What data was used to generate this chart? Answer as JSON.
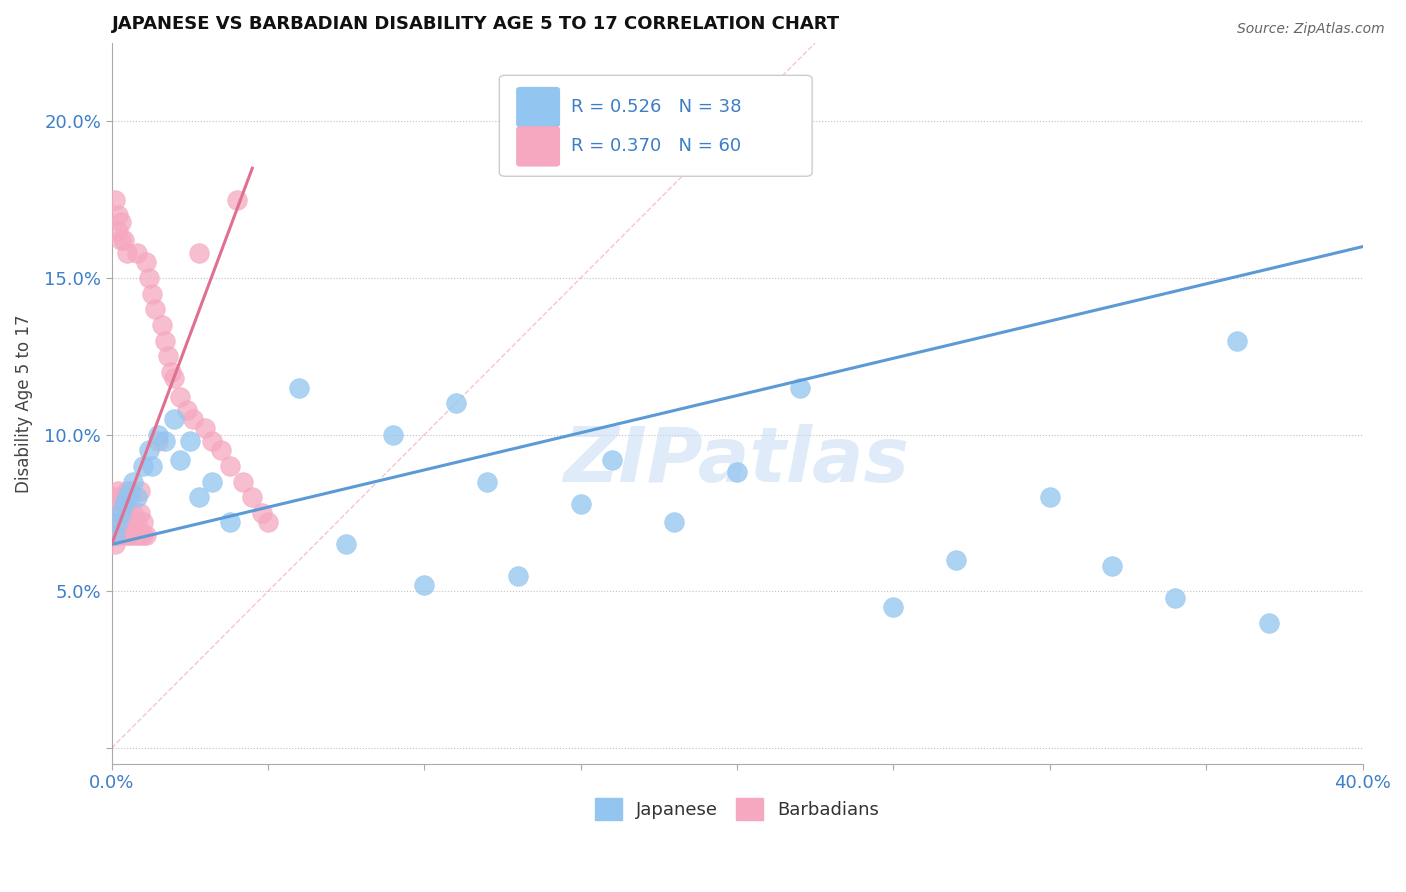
{
  "title": "JAPANESE VS BARBADIAN DISABILITY AGE 5 TO 17 CORRELATION CHART",
  "source": "Source: ZipAtlas.com",
  "ylabel": "Disability Age 5 to 17",
  "xlim": [
    0.0,
    0.4
  ],
  "ylim": [
    -0.005,
    0.225
  ],
  "xtick_positions": [
    0.0,
    0.05,
    0.1,
    0.15,
    0.2,
    0.25,
    0.3,
    0.35,
    0.4
  ],
  "ytick_positions": [
    0.0,
    0.05,
    0.1,
    0.15,
    0.2
  ],
  "blue_r": "R = 0.526",
  "blue_n": "N = 38",
  "pink_r": "R = 0.370",
  "pink_n": "N = 60",
  "blue_color": "#92C5F0",
  "pink_color": "#F5A8C0",
  "blue_line_color": "#5B9BD5",
  "pink_line_color": "#E07090",
  "legend_label_blue": "Japanese",
  "legend_label_pink": "Barbadians",
  "watermark": "ZIPatlas",
  "blue_line_x": [
    0.0,
    0.4
  ],
  "blue_line_y": [
    0.065,
    0.16
  ],
  "pink_line_x": [
    0.0,
    0.045
  ],
  "pink_line_y": [
    0.065,
    0.185
  ],
  "dash_line_x": [
    0.0,
    0.225
  ],
  "dash_line_y": [
    0.0,
    0.225
  ],
  "blue_x": [
    0.001,
    0.002,
    0.003,
    0.004,
    0.005,
    0.006,
    0.007,
    0.008,
    0.01,
    0.012,
    0.013,
    0.015,
    0.017,
    0.02,
    0.022,
    0.025,
    0.028,
    0.032,
    0.038,
    0.06,
    0.075,
    0.09,
    0.1,
    0.11,
    0.12,
    0.13,
    0.15,
    0.16,
    0.18,
    0.2,
    0.22,
    0.25,
    0.27,
    0.3,
    0.32,
    0.34,
    0.36,
    0.37
  ],
  "blue_y": [
    0.068,
    0.072,
    0.075,
    0.078,
    0.08,
    0.082,
    0.085,
    0.08,
    0.09,
    0.095,
    0.09,
    0.1,
    0.098,
    0.105,
    0.092,
    0.098,
    0.08,
    0.085,
    0.072,
    0.115,
    0.065,
    0.1,
    0.052,
    0.11,
    0.085,
    0.055,
    0.078,
    0.092,
    0.072,
    0.088,
    0.115,
    0.045,
    0.06,
    0.08,
    0.058,
    0.048,
    0.13,
    0.04
  ],
  "pink_x": [
    0.0005,
    0.001,
    0.001,
    0.001,
    0.001,
    0.002,
    0.002,
    0.002,
    0.002,
    0.002,
    0.003,
    0.003,
    0.003,
    0.003,
    0.003,
    0.004,
    0.004,
    0.004,
    0.004,
    0.005,
    0.005,
    0.005,
    0.005,
    0.006,
    0.006,
    0.006,
    0.007,
    0.007,
    0.008,
    0.008,
    0.008,
    0.009,
    0.009,
    0.009,
    0.01,
    0.01,
    0.011,
    0.011,
    0.012,
    0.013,
    0.014,
    0.015,
    0.016,
    0.017,
    0.018,
    0.019,
    0.02,
    0.022,
    0.024,
    0.026,
    0.028,
    0.03,
    0.032,
    0.035,
    0.038,
    0.04,
    0.042,
    0.045,
    0.048,
    0.05
  ],
  "pink_y": [
    0.068,
    0.065,
    0.072,
    0.08,
    0.175,
    0.068,
    0.075,
    0.082,
    0.165,
    0.17,
    0.07,
    0.075,
    0.08,
    0.162,
    0.168,
    0.068,
    0.072,
    0.078,
    0.162,
    0.068,
    0.075,
    0.082,
    0.158,
    0.068,
    0.072,
    0.08,
    0.068,
    0.075,
    0.068,
    0.072,
    0.158,
    0.068,
    0.075,
    0.082,
    0.068,
    0.072,
    0.068,
    0.155,
    0.15,
    0.145,
    0.14,
    0.098,
    0.135,
    0.13,
    0.125,
    0.12,
    0.118,
    0.112,
    0.108,
    0.105,
    0.158,
    0.102,
    0.098,
    0.095,
    0.09,
    0.175,
    0.085,
    0.08,
    0.075,
    0.072
  ]
}
